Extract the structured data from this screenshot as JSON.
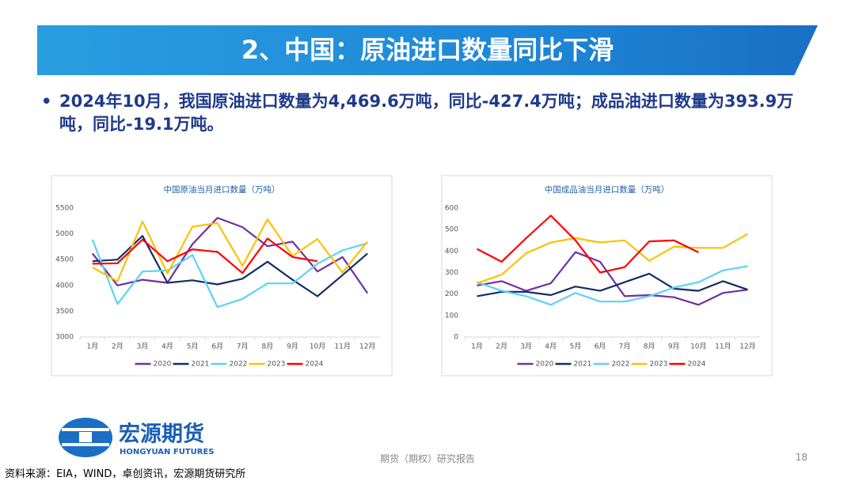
{
  "header": {
    "title": "2、中国：原油进口数量同比下滑"
  },
  "bullet": "2024年10月，我国原油进口数量为4,469.6万吨，同比-427.4万吨；成品油进口数量为393.9万吨，同比-19.1万吨。",
  "logo": {
    "name": "宏源期货",
    "name_en": "HONGYUAN FUTURES"
  },
  "footer": {
    "center": "期货（期权）研究报告",
    "page": "18",
    "source": "资料来源：EIA，WIND，卓创资讯，宏源期货研究所"
  },
  "chart_data": [
    {
      "type": "line",
      "title": "中国原油当月进口数量（万吨）",
      "categories": [
        "1月",
        "2月",
        "3月",
        "4月",
        "5月",
        "6月",
        "7月",
        "8月",
        "9月",
        "10月",
        "11月",
        "12月"
      ],
      "ylim": [
        3000,
        5500
      ],
      "yticks": [
        3000,
        3500,
        4000,
        4500,
        5000,
        5500
      ],
      "grid": false,
      "legend": "bottom",
      "series": [
        {
          "name": "2020",
          "color": "#7030a0",
          "values": [
            4620,
            4000,
            4110,
            4050,
            4800,
            5310,
            5130,
            4760,
            4850,
            4270,
            4550,
            3850
          ]
        },
        {
          "name": "2021",
          "color": "#132f66",
          "values": [
            4470,
            4500,
            4960,
            4050,
            4100,
            4020,
            4130,
            4460,
            4110,
            3790,
            4200,
            4620
          ]
        },
        {
          "name": "2022",
          "color": "#5cd2f4",
          "values": [
            4890,
            3640,
            4270,
            4290,
            4590,
            3580,
            3740,
            4040,
            4040,
            4420,
            4680,
            4820
          ]
        },
        {
          "name": "2023",
          "color": "#ffc000",
          "values": [
            4350,
            4080,
            5240,
            4230,
            5140,
            5210,
            4380,
            5280,
            4570,
            4900,
            4250,
            4850
          ]
        },
        {
          "name": "2024",
          "color": "#ff0000",
          "values": [
            4420,
            4430,
            4890,
            4470,
            4700,
            4650,
            4240,
            4910,
            4550,
            4470,
            null,
            null
          ]
        }
      ]
    },
    {
      "type": "line",
      "title": "中国成品油当月进口数量（万吨）",
      "categories": [
        "1月",
        "2月",
        "3月",
        "4月",
        "5月",
        "6月",
        "7月",
        "8月",
        "9月",
        "10月",
        "11月",
        "12月"
      ],
      "ylim": [
        0,
        600
      ],
      "yticks": [
        0,
        100,
        200,
        300,
        400,
        500,
        600
      ],
      "grid": false,
      "legend": "bottom",
      "series": [
        {
          "name": "2020",
          "color": "#7030a0",
          "values": [
            240,
            260,
            215,
            250,
            395,
            350,
            190,
            195,
            185,
            150,
            205,
            220
          ]
        },
        {
          "name": "2021",
          "color": "#132f66",
          "values": [
            190,
            210,
            210,
            195,
            235,
            215,
            255,
            295,
            225,
            215,
            260,
            220
          ]
        },
        {
          "name": "2022",
          "color": "#5cd2f4",
          "values": [
            255,
            215,
            190,
            150,
            205,
            165,
            165,
            190,
            230,
            255,
            310,
            330
          ]
        },
        {
          "name": "2023",
          "color": "#ffc000",
          "values": [
            250,
            290,
            390,
            440,
            460,
            440,
            450,
            355,
            420,
            415,
            415,
            480
          ]
        },
        {
          "name": "2024",
          "color": "#ff0000",
          "values": [
            410,
            350,
            460,
            565,
            450,
            300,
            325,
            445,
            450,
            394,
            null,
            null
          ]
        }
      ]
    }
  ]
}
